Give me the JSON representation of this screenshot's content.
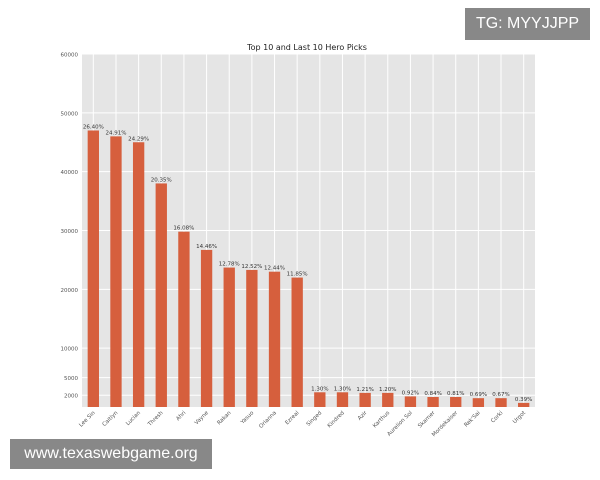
{
  "chart_data": {
    "type": "bar",
    "title": "Top 10 and Last 10 Hero Picks",
    "categories": [
      "Lee Sin",
      "Caitlyn",
      "Lucian",
      "Thresh",
      "Ahri",
      "Vayne",
      "Rakan",
      "Yasuo",
      "Orianna",
      "Ezreal",
      "Singed",
      "Kindred",
      "Azir",
      "Karthus",
      "Aurelion Sol",
      "Skarner",
      "Mordekaiser",
      "Rek'Sai",
      "Corki",
      "Urgot"
    ],
    "values": [
      47000,
      46000,
      45000,
      38000,
      29800,
      26700,
      23700,
      23300,
      23000,
      22000,
      2500,
      2500,
      2400,
      2400,
      1800,
      1700,
      1700,
      1500,
      1500,
      700
    ],
    "data_labels": [
      "26.40%",
      "24.91%",
      "24.29%",
      "20.35%",
      "16.08%",
      "14.46%",
      "12.78%",
      "12.52%",
      "12.44%",
      "11.85%",
      "1.30%",
      "1.30%",
      "1.21%",
      "1.20%",
      "0.92%",
      "0.84%",
      "0.81%",
      "0.69%",
      "0.67%",
      "0.39%"
    ],
    "yticks": [
      2000,
      5000,
      10000,
      20000,
      30000,
      40000,
      50000,
      60000
    ],
    "ylim": [
      0,
      60000
    ],
    "xlabel": "",
    "ylabel": "",
    "grid": true,
    "bar_color": "#d65f3d",
    "plot_bg": "#e5e5e5",
    "grid_color": "#ffffff"
  },
  "overlays": {
    "tg_badge": "TG: MYYJJPP",
    "site_banner": "www.texaswebgame.org"
  }
}
